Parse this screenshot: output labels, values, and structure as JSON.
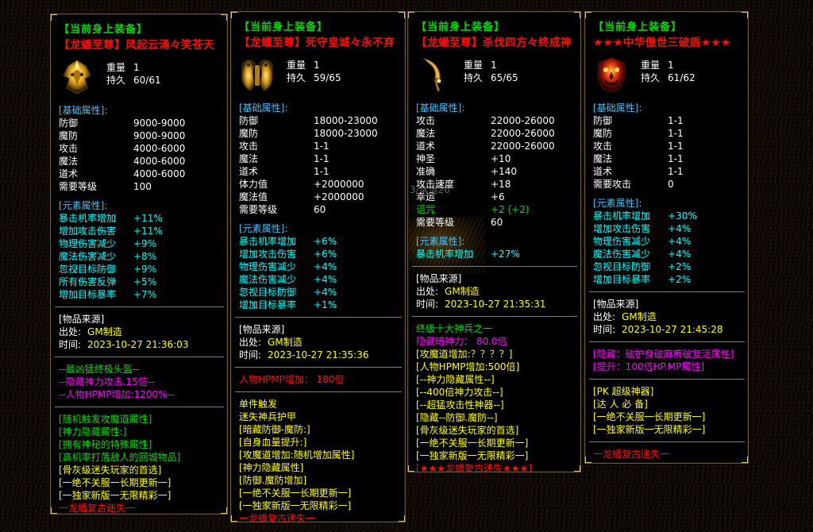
{
  "colors": {
    "green": "#00dc00",
    "red": "#ff0f00",
    "white": "#ffffff",
    "blue": "#4fbdf2",
    "cyan": "#00ffff",
    "yellow": "#ffff00",
    "magenta": "#ff00ff",
    "gray": "#aaaaaa"
  },
  "panels": [
    {
      "header": "【当前身上装备】",
      "title": "【龙蟠至尊】风起云涌々笑苍天",
      "icon": "dragon-helmet",
      "weight_label": "重量",
      "weight_value": "1",
      "durability_label": "持久",
      "durability_value": "60/61",
      "base": {
        "header": "[基础属性]:",
        "rows": [
          {
            "label": "防御",
            "value": "9000-9000"
          },
          {
            "label": "魔防",
            "value": "9000-9000"
          },
          {
            "label": "攻击",
            "value": "4000-6000"
          },
          {
            "label": "魔法",
            "value": "4000-6000"
          },
          {
            "label": "道术",
            "value": "4000-6000"
          },
          {
            "label": "需要等级",
            "value": "100"
          }
        ]
      },
      "element": {
        "header": "[元素属性]:",
        "rows": [
          {
            "label": "暴击机率增加",
            "value": "+11%"
          },
          {
            "label": "增加攻击伤害",
            "value": "+11%"
          },
          {
            "label": "物理伤害减少",
            "value": "+9%"
          },
          {
            "label": "魔法伤害减少",
            "value": "+8%"
          },
          {
            "label": "忽视目标防御",
            "value": "+9%"
          },
          {
            "label": "所有伤害反弹",
            "value": "+5%"
          },
          {
            "label": "增加目标暴率",
            "value": "+7%"
          }
        ]
      },
      "source": {
        "header": "[物品来源]",
        "origin_label": "出处:",
        "origin_value": "GM制造",
        "time_label": "时间:",
        "time_value": "2023-10-27 21:36:03"
      },
      "blocks": [
        {
          "lines": [
            {
              "text": "--最凶猛终极头盔--",
              "color": "green"
            },
            {
              "text": "--隐藏神力攻击.15倍--",
              "color": "magenta"
            },
            {
              "text": "--人物HPMP增加:1200%--",
              "color": "magenta"
            }
          ]
        },
        {
          "lines": [
            {
              "text": "[随机触发攻魔道属性]",
              "color": "green"
            },
            {
              "text": "[神力隐藏属性:]",
              "color": "green"
            },
            {
              "text": "[拥有神秘的特殊属性]",
              "color": "green"
            },
            {
              "text": "[高机率打落敌人的回城物品]",
              "color": "green"
            },
            {
              "text": "[骨灰级迷失玩家的首选]",
              "color": "yellow"
            },
            {
              "text": "[一绝不关服一长期更新一]",
              "color": "yellow"
            },
            {
              "text": "[一独家新版一无限精彩一]",
              "color": "yellow"
            },
            {
              "text": "一龙蟠复古迷失一",
              "color": "red"
            }
          ]
        }
      ]
    },
    {
      "header": "【当前身上装备】",
      "title": "【龙蟠至尊】死守皇城々永不弃",
      "icon": "dragon-armor",
      "weight_label": "重量",
      "weight_value": "1",
      "durability_label": "持久",
      "durability_value": "59/65",
      "base": {
        "header": "[基础属性]:",
        "rows": [
          {
            "label": "防御",
            "value": "18000-23000"
          },
          {
            "label": "魔防",
            "value": "18000-23000"
          },
          {
            "label": "攻击",
            "value": "1-1"
          },
          {
            "label": "魔法",
            "value": "1-1"
          },
          {
            "label": "道术",
            "value": "1-1"
          },
          {
            "label": "体力值",
            "value": "+2000000"
          },
          {
            "label": "魔法值",
            "value": "+2000000"
          },
          {
            "label": "需要等级",
            "value": "60"
          }
        ]
      },
      "element": {
        "header": "[元素属性]:",
        "rows": [
          {
            "label": "暴击机率增加",
            "value": "+6%"
          },
          {
            "label": "增加攻击伤害",
            "value": "+6%"
          },
          {
            "label": "物理伤害减少",
            "value": "+4%"
          },
          {
            "label": "魔法伤害减少",
            "value": "+4%"
          },
          {
            "label": "忽视目标防御",
            "value": "+4%"
          },
          {
            "label": "增加目标暴率",
            "value": "+1%"
          }
        ]
      },
      "source": {
        "header": "[物品来源]",
        "origin_label": "出处:",
        "origin_value": "GM制造",
        "time_label": "时间:",
        "time_value": "2023-10-27 21:35:36"
      },
      "blocks": [
        {
          "lines": [
            {
              "text": "人物HPMP增加： 180倍",
              "color": "red"
            }
          ]
        },
        {
          "lines": [
            {
              "text": "单件触发",
              "color": "yellow"
            },
            {
              "text": "迷失神兵护甲",
              "color": "yellow"
            },
            {
              "text": "[暗藏防御-魔防:]",
              "color": "yellow"
            },
            {
              "text": "[自身血量提升:]",
              "color": "yellow"
            },
            {
              "text": "[攻魔道增加:随机增加属性]",
              "color": "yellow"
            },
            {
              "text": "[神力隐藏属性]",
              "color": "yellow"
            },
            {
              "text": "[防御.魔防增加]",
              "color": "yellow"
            },
            {
              "text": "[一绝不关服一长期更新一]",
              "color": "yellow"
            },
            {
              "text": "[一独家新版一无限精彩一]",
              "color": "yellow"
            },
            {
              "text": "一龙蟠复古迷失一",
              "color": "red"
            }
          ]
        }
      ]
    },
    {
      "header": "【当前身上装备】",
      "title": "【龙蟠至尊】杀伐四方々终成神",
      "icon": "golden-sword",
      "weight_label": "重量",
      "weight_value": "1",
      "durability_label": "持久",
      "durability_value": "65/65",
      "ghost_text": "3/幸运20",
      "base": {
        "header": "[基础属性]:",
        "rows": [
          {
            "label": "攻击",
            "value": "22000-26000"
          },
          {
            "label": "魔法",
            "value": "22000-26000"
          },
          {
            "label": "道术",
            "value": "22000-26000"
          },
          {
            "label": "神圣",
            "value": "+10"
          },
          {
            "label": "准确",
            "value": "+140"
          },
          {
            "label": "攻击速度",
            "value": "+18"
          },
          {
            "label": "幸运",
            "value": "+6"
          },
          {
            "label": "诅咒",
            "value": "+2 (+2)",
            "color": "green"
          },
          {
            "label": "需要等级",
            "value": "60"
          }
        ]
      },
      "element": {
        "header": "[元素属性]:",
        "rows": [
          {
            "label": "暴击机率增加",
            "value": "+27%"
          }
        ]
      },
      "source": {
        "header": "[物品来源]",
        "origin_label": "出处:",
        "origin_value": "GM制造",
        "time_label": "时间:",
        "time_value": "2023-10-27 21:35:31"
      },
      "blocks": [
        {
          "lines": [
            {
              "text": "终级十大神兵之一",
              "color": "green"
            },
            {
              "text": "隐藏暗神力： 80.0倍",
              "color": "magenta"
            },
            {
              "text": "[攻魔道增加:？？？？]",
              "color": "yellow"
            },
            {
              "text": "[人物HPMP增加:500倍]",
              "color": "yellow"
            },
            {
              "text": "[--神力隐藏属性--]",
              "color": "yellow"
            },
            {
              "text": "[--400倍神力攻击--]",
              "color": "yellow"
            },
            {
              "text": "[--超猛攻击性神器--]",
              "color": "yellow"
            },
            {
              "text": "[隐藏--防御.魔防--]",
              "color": "yellow"
            },
            {
              "text": "[骨灰级迷失玩家的首选]",
              "color": "yellow"
            },
            {
              "text": "[一绝不关服一长期更新一]",
              "color": "yellow"
            },
            {
              "text": "[一独家新版一无限精彩一]",
              "color": "yellow"
            },
            {
              "text": "[★★★龙蟠复古迷失★★★]",
              "color": "red"
            }
          ]
        }
      ]
    },
    {
      "header": "【当前身上装备】",
      "title": "★★★中华傲世三破盾★★★",
      "icon": "demon-shield",
      "weight_label": "重量",
      "weight_value": "1",
      "durability_label": "持久",
      "durability_value": "61/62",
      "base": {
        "header": "[基础属性]:",
        "rows": [
          {
            "label": "防御",
            "value": "1-1"
          },
          {
            "label": "魔防",
            "value": "1-1"
          },
          {
            "label": "攻击",
            "value": "1-1"
          },
          {
            "label": "魔法",
            "value": "1-1"
          },
          {
            "label": "道术",
            "value": "1-1"
          },
          {
            "label": "需要攻击",
            "value": "0"
          }
        ]
      },
      "element": {
        "header": "[元素属性]:",
        "rows": [
          {
            "label": "暴击机率增加",
            "value": "+30%"
          },
          {
            "label": "增加攻击伤害",
            "value": "+4%"
          },
          {
            "label": "物理伤害减少",
            "value": "+4%"
          },
          {
            "label": "魔法伤害减少",
            "value": "+4%"
          },
          {
            "label": "忽视目标防御",
            "value": "+2%"
          },
          {
            "label": "增加目标暴率",
            "value": "+2%"
          }
        ]
      },
      "source": {
        "header": "[物品来源]",
        "origin_label": "出处:",
        "origin_value": "GM制造",
        "time_label": "时间:",
        "time_value": "2023-10-27 21:45:28"
      },
      "blocks": [
        {
          "lines": [
            {
              "text": "[隐藏：破护身破麻痹破复活属性]",
              "color": "magenta"
            },
            {
              "text": "[提升：100倍HP.MP属性]",
              "color": "magenta"
            }
          ]
        },
        {
          "lines": [
            {
              "text": "[PK 超级神器]",
              "color": "yellow"
            },
            {
              "text": "[达 人 必 备]",
              "color": "yellow"
            },
            {
              "text": "[一绝不关服一长期更新一]",
              "color": "yellow"
            },
            {
              "text": "[一独家新版一无限精彩一]",
              "color": "yellow"
            }
          ]
        },
        {
          "lines": [
            {
              "text": "一龙蟠复古迷失一",
              "color": "red"
            }
          ]
        }
      ]
    }
  ]
}
